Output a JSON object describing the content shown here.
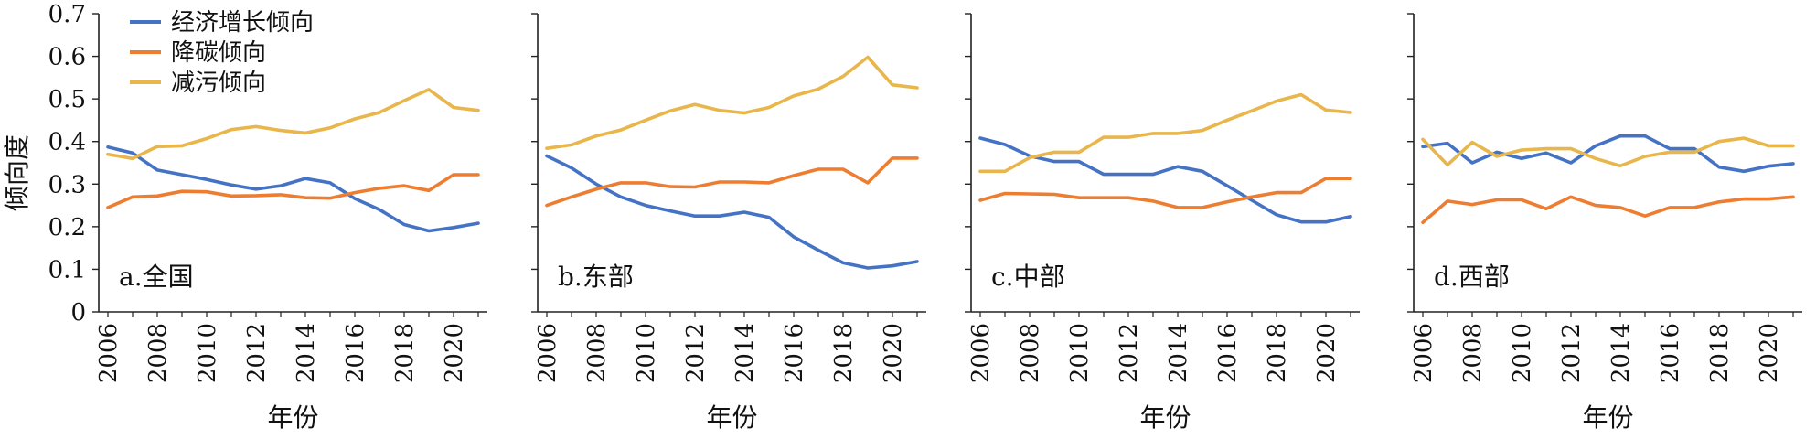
{
  "figure": {
    "ylabel": "倾向度",
    "xlabel": "年份",
    "ylim": [
      0,
      0.7
    ],
    "yticks": [
      "0",
      "0.1",
      "0.2",
      "0.3",
      "0.4",
      "0.5",
      "0.6",
      "0.7"
    ],
    "xticks": [
      "2006",
      "2008",
      "2010",
      "2012",
      "2014",
      "2016",
      "2018",
      "2020"
    ],
    "legend": [
      {
        "name": "经济增长倾向",
        "color": "#4472C4"
      },
      {
        "name": "降碳倾向",
        "color": "#ED7D31"
      },
      {
        "name": "减污倾向",
        "color": "#E8B64A"
      }
    ]
  },
  "chart_data": [
    {
      "type": "line",
      "title": "a.全国",
      "x": [
        2006,
        2007,
        2008,
        2009,
        2010,
        2011,
        2012,
        2013,
        2014,
        2015,
        2016,
        2017,
        2018,
        2019,
        2020,
        2021
      ],
      "xlabel": "年份",
      "ylabel": "倾向度",
      "ylim": [
        0,
        0.7
      ],
      "series": [
        {
          "name": "经济增长倾向",
          "color": "#4472C4",
          "values": [
            0.387,
            0.373,
            0.333,
            0.322,
            0.311,
            0.298,
            0.288,
            0.296,
            0.313,
            0.303,
            0.266,
            0.24,
            0.205,
            0.19,
            0.198,
            0.208
          ]
        },
        {
          "name": "降碳倾向",
          "color": "#ED7D31",
          "values": [
            0.245,
            0.27,
            0.272,
            0.283,
            0.282,
            0.272,
            0.273,
            0.275,
            0.268,
            0.267,
            0.28,
            0.29,
            0.296,
            0.285,
            0.322,
            0.322
          ]
        },
        {
          "name": "减污倾向",
          "color": "#E8B64A",
          "values": [
            0.37,
            0.36,
            0.388,
            0.39,
            0.407,
            0.428,
            0.435,
            0.426,
            0.42,
            0.432,
            0.453,
            0.468,
            0.496,
            0.522,
            0.48,
            0.473
          ]
        }
      ]
    },
    {
      "type": "line",
      "title": "b.东部",
      "x": [
        2006,
        2007,
        2008,
        2009,
        2010,
        2011,
        2012,
        2013,
        2014,
        2015,
        2016,
        2017,
        2018,
        2019,
        2020,
        2021
      ],
      "xlabel": "年份",
      "ylabel": "倾向度",
      "ylim": [
        0,
        0.7
      ],
      "series": [
        {
          "name": "经济增长倾向",
          "color": "#4472C4",
          "values": [
            0.366,
            0.338,
            0.3,
            0.27,
            0.25,
            0.237,
            0.225,
            0.225,
            0.234,
            0.222,
            0.176,
            0.145,
            0.115,
            0.103,
            0.108,
            0.118
          ]
        },
        {
          "name": "降碳倾向",
          "color": "#ED7D31",
          "values": [
            0.25,
            0.27,
            0.288,
            0.303,
            0.303,
            0.294,
            0.293,
            0.305,
            0.305,
            0.303,
            0.32,
            0.335,
            0.335,
            0.303,
            0.361,
            0.361
          ]
        },
        {
          "name": "减污倾向",
          "color": "#E8B64A",
          "values": [
            0.384,
            0.392,
            0.413,
            0.427,
            0.45,
            0.472,
            0.487,
            0.473,
            0.467,
            0.48,
            0.507,
            0.523,
            0.553,
            0.598,
            0.533,
            0.526
          ]
        }
      ]
    },
    {
      "type": "line",
      "title": "c.中部",
      "x": [
        2006,
        2007,
        2008,
        2009,
        2010,
        2011,
        2012,
        2013,
        2014,
        2015,
        2016,
        2017,
        2018,
        2019,
        2020,
        2021
      ],
      "xlabel": "年份",
      "ylabel": "倾向度",
      "ylim": [
        0,
        0.7
      ],
      "series": [
        {
          "name": "经济增长倾向",
          "color": "#4472C4",
          "values": [
            0.408,
            0.393,
            0.366,
            0.353,
            0.353,
            0.323,
            0.323,
            0.323,
            0.341,
            0.33,
            0.296,
            0.262,
            0.228,
            0.211,
            0.211,
            0.224
          ]
        },
        {
          "name": "降碳倾向",
          "color": "#ED7D31",
          "values": [
            0.262,
            0.278,
            0.277,
            0.276,
            0.268,
            0.268,
            0.268,
            0.26,
            0.245,
            0.245,
            0.258,
            0.27,
            0.28,
            0.28,
            0.313,
            0.313
          ]
        },
        {
          "name": "减污倾向",
          "color": "#E8B64A",
          "values": [
            0.33,
            0.33,
            0.362,
            0.375,
            0.375,
            0.41,
            0.41,
            0.419,
            0.419,
            0.426,
            0.45,
            0.472,
            0.495,
            0.51,
            0.474,
            0.468
          ]
        }
      ]
    },
    {
      "type": "line",
      "title": "d.西部",
      "x": [
        2006,
        2007,
        2008,
        2009,
        2010,
        2011,
        2012,
        2013,
        2014,
        2015,
        2016,
        2017,
        2018,
        2019,
        2020,
        2021
      ],
      "xlabel": "年份",
      "ylabel": "倾向度",
      "ylim": [
        0,
        0.7
      ],
      "series": [
        {
          "name": "经济增长倾向",
          "color": "#4472C4",
          "values": [
            0.388,
            0.396,
            0.35,
            0.375,
            0.36,
            0.373,
            0.35,
            0.39,
            0.413,
            0.413,
            0.383,
            0.383,
            0.34,
            0.33,
            0.342,
            0.348
          ]
        },
        {
          "name": "降碳倾向",
          "color": "#ED7D31",
          "values": [
            0.21,
            0.26,
            0.252,
            0.263,
            0.263,
            0.242,
            0.27,
            0.25,
            0.245,
            0.225,
            0.245,
            0.245,
            0.258,
            0.265,
            0.265,
            0.27
          ]
        },
        {
          "name": "减污倾向",
          "color": "#E8B64A",
          "values": [
            0.405,
            0.345,
            0.398,
            0.365,
            0.38,
            0.383,
            0.383,
            0.36,
            0.343,
            0.365,
            0.375,
            0.375,
            0.4,
            0.408,
            0.39,
            0.39
          ]
        }
      ]
    }
  ]
}
